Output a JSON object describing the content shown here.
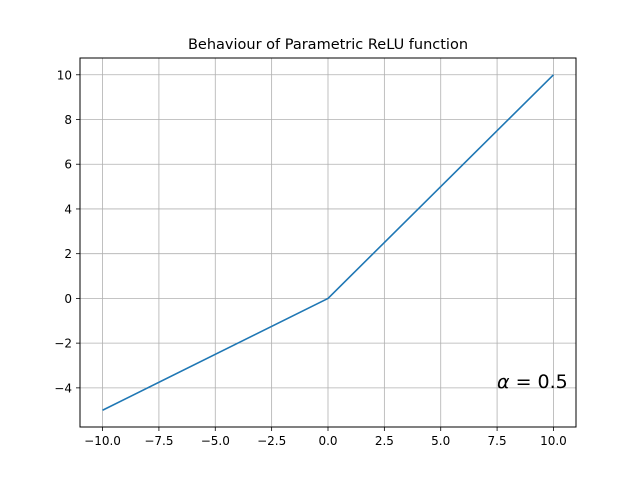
{
  "chart_data": {
    "type": "line",
    "title": "Behaviour of Parametric ReLU function",
    "xlabel": "",
    "ylabel": "",
    "xlim": [
      -11,
      11
    ],
    "ylim": [
      -5.75,
      10.75
    ],
    "xticks": [
      -10.0,
      -7.5,
      -5.0,
      -2.5,
      0.0,
      2.5,
      5.0,
      7.5,
      10.0
    ],
    "xtick_labels": [
      "−10.0",
      "−7.5",
      "−5.0",
      "−2.5",
      "0.0",
      "2.5",
      "5.0",
      "7.5",
      "10.0"
    ],
    "yticks": [
      -4,
      -2,
      0,
      2,
      4,
      6,
      8,
      10
    ],
    "ytick_labels": [
      "−4",
      "−2",
      "0",
      "2",
      "4",
      "6",
      "8",
      "10"
    ],
    "grid": true,
    "series": [
      {
        "name": "",
        "color": "#1f77b4",
        "x": [
          -10,
          0,
          10
        ],
        "y": [
          -5,
          0,
          10
        ]
      }
    ],
    "annotation": {
      "symbol": "α",
      "text": " = 0.5"
    }
  }
}
